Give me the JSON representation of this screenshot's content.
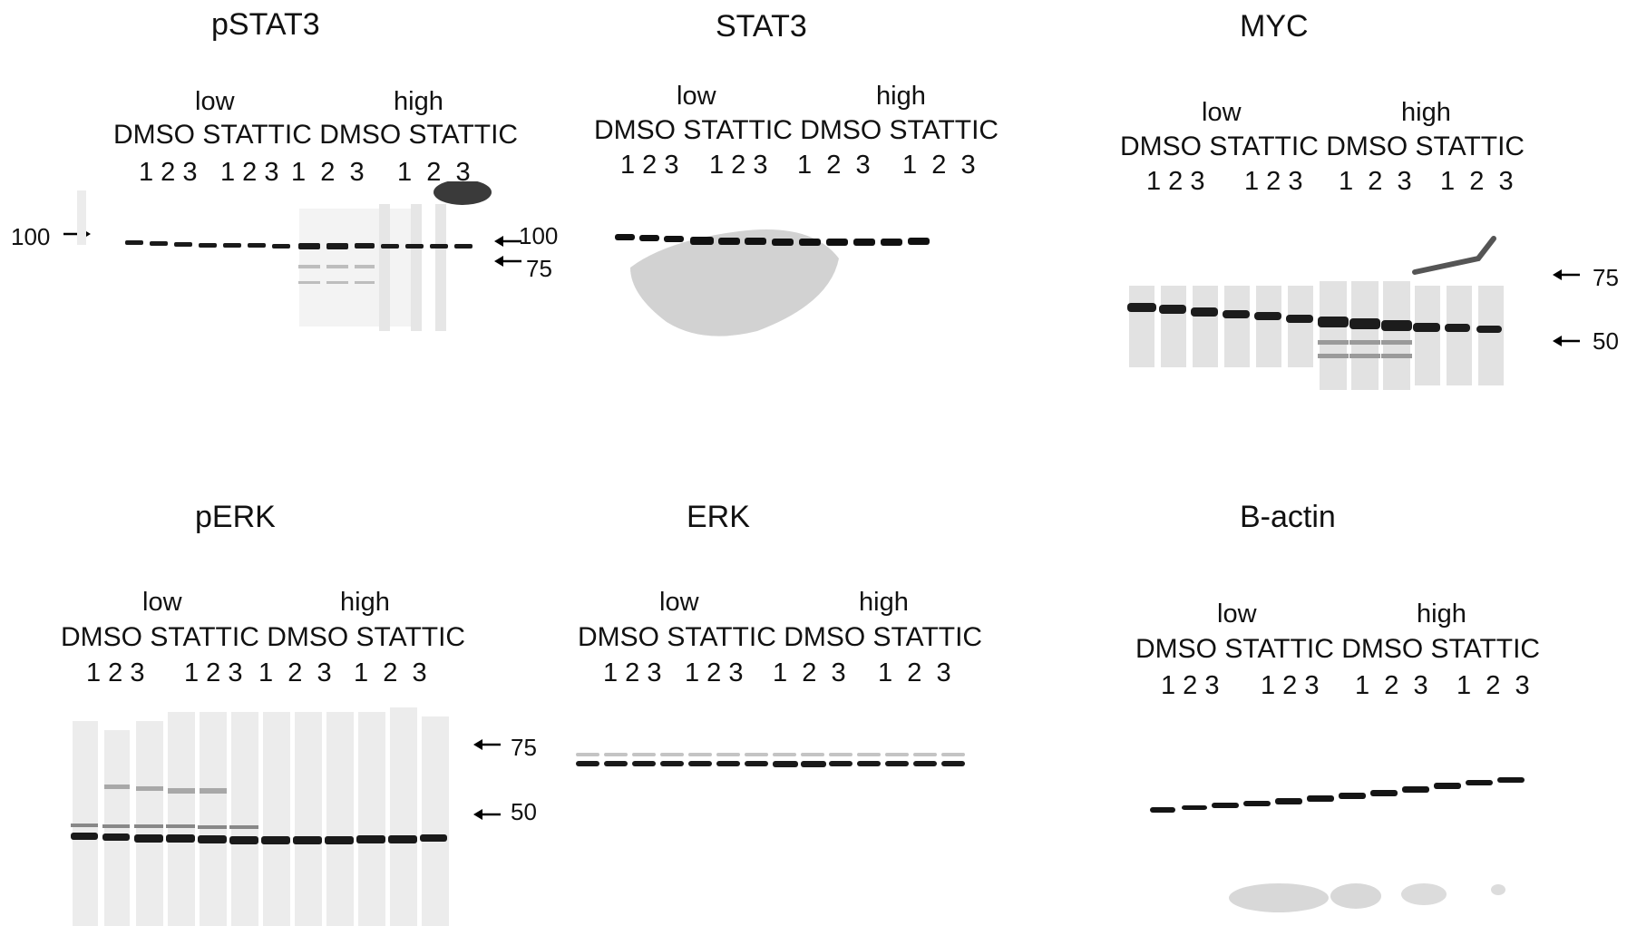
{
  "figure_labels": {
    "conditions": [
      "low",
      "high"
    ],
    "treatments_row": "DMSO STATTIC DMSO STATTIC",
    "lane_numbers": [
      "1 2 3",
      "1 2 3",
      "1  2  3",
      "1  2  3"
    ]
  },
  "panels": {
    "pstat3": {
      "title": "pSTAT3",
      "markers": [
        "100",
        "100",
        "75"
      ]
    },
    "stat3": {
      "title": "STAT3",
      "markers": []
    },
    "myc": {
      "title": "MYC",
      "markers": [
        "75",
        "50"
      ]
    },
    "perk": {
      "title": "pERK",
      "markers": [
        "75",
        "50"
      ]
    },
    "erk": {
      "title": "ERK",
      "markers": []
    },
    "bactin": {
      "title": "B-actin",
      "markers": []
    }
  }
}
